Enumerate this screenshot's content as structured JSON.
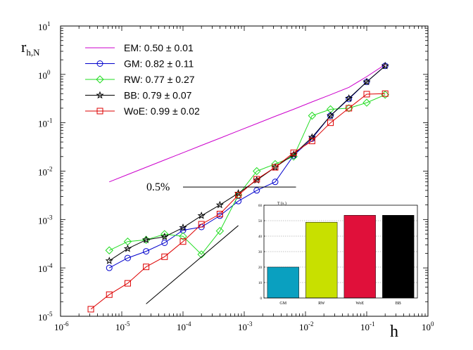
{
  "chart_data": [
    {
      "type": "line",
      "xscale": "log",
      "yscale": "log",
      "xlim_exp": [
        -6,
        0
      ],
      "ylim_exp": [
        -5,
        1
      ],
      "x_ticks": [
        {
          "base": "10",
          "exp": "-6"
        },
        {
          "base": "10",
          "exp": "-5"
        },
        {
          "base": "10",
          "exp": "-4"
        },
        {
          "base": "10",
          "exp": "-3"
        },
        {
          "base": "10",
          "exp": "-2"
        },
        {
          "base": "10",
          "exp": "-1"
        },
        {
          "base": "10",
          "exp": "0"
        }
      ],
      "y_ticks": [
        {
          "base": "10",
          "exp": "-5"
        },
        {
          "base": "10",
          "exp": "-4"
        },
        {
          "base": "10",
          "exp": "-3"
        },
        {
          "base": "10",
          "exp": "-2"
        },
        {
          "base": "10",
          "exp": "-1"
        },
        {
          "base": "10",
          "exp": "0"
        },
        {
          "base": "10",
          "exp": "1"
        }
      ],
      "xlabel": "h",
      "ylabel": {
        "main": "r",
        "sub": "h,N"
      },
      "legend_position": "top-left",
      "series": [
        {
          "name": "EM",
          "legend": "EM: 0.50 ± 0.01",
          "color": "#cc00cc",
          "marker": "none",
          "x": [
            6.25e-06,
            1.25e-05,
            2.5e-05,
            5e-05,
            0.0001,
            0.0002,
            0.0004,
            0.0008,
            0.0016,
            0.0032,
            0.0064,
            0.0128,
            0.0256,
            0.0512,
            0.1,
            0.2
          ],
          "y": [
            0.006,
            0.0085,
            0.012,
            0.017,
            0.024,
            0.034,
            0.048,
            0.068,
            0.096,
            0.136,
            0.19,
            0.27,
            0.38,
            0.54,
            0.9,
            1.6
          ]
        },
        {
          "name": "GM",
          "legend": "GM: 0.82 ± 0.11",
          "color": "#0000cc",
          "marker": "circle",
          "x": [
            6.25e-06,
            1.25e-05,
            2.5e-05,
            5e-05,
            0.0001,
            0.0002,
            0.0004,
            0.0008,
            0.0016,
            0.0032,
            0.0064,
            0.0128,
            0.0256,
            0.0512,
            0.1,
            0.2
          ],
          "y": [
            0.0001,
            0.00016,
            0.00022,
            0.00033,
            0.0006,
            0.0007,
            0.0012,
            0.0024,
            0.004,
            0.006,
            0.021,
            0.047,
            0.14,
            0.31,
            0.7,
            1.5
          ]
        },
        {
          "name": "RW",
          "legend": "RW: 0.77 ± 0.27",
          "color": "#22dd22",
          "marker": "diamond",
          "x": [
            6.25e-06,
            1.25e-05,
            2.5e-05,
            5e-05,
            0.0001,
            0.0002,
            0.0004,
            0.0008,
            0.0016,
            0.0032,
            0.0064,
            0.0128,
            0.0256,
            0.0512,
            0.1,
            0.2
          ],
          "y": [
            0.00023,
            0.00035,
            0.00038,
            0.0005,
            0.00045,
            0.00019,
            0.00058,
            0.0032,
            0.01,
            0.014,
            0.02,
            0.14,
            0.19,
            0.2,
            0.26,
            0.38
          ]
        },
        {
          "name": "BB",
          "legend": "BB: 0.79 ± 0.07",
          "color": "#000000",
          "marker": "star",
          "x": [
            6.25e-06,
            1.25e-05,
            2.5e-05,
            5e-05,
            0.0001,
            0.0002,
            0.0004,
            0.0008,
            0.0016,
            0.0032,
            0.0064,
            0.0128,
            0.0256,
            0.0512,
            0.1,
            0.2
          ],
          "y": [
            0.00014,
            0.00025,
            0.00038,
            0.00044,
            0.00068,
            0.0012,
            0.002,
            0.0035,
            0.0065,
            0.012,
            0.022,
            0.05,
            0.14,
            0.32,
            0.7,
            1.5
          ]
        },
        {
          "name": "WoE",
          "legend": "WoE: 0.99 ± 0.02",
          "color": "#dd0000",
          "marker": "square",
          "x": [
            3.125e-06,
            6.25e-06,
            1.25e-05,
            2.5e-05,
            5e-05,
            0.0001,
            0.0002,
            0.0004,
            0.0008,
            0.0016,
            0.0032,
            0.0064,
            0.0128,
            0.0256,
            0.0512,
            0.1,
            0.2
          ],
          "y": [
            1.4e-05,
            2.8e-05,
            4.8e-05,
            0.000105,
            0.00017,
            0.00035,
            0.0008,
            0.0013,
            0.0032,
            0.0068,
            0.012,
            0.024,
            0.042,
            0.1,
            0.2,
            0.39,
            0.4
          ]
        }
      ],
      "annotations": [
        {
          "text": "0.5%",
          "type": "hline",
          "y": 0.0047,
          "x_from": 0.0001,
          "x_to": 0.007
        },
        {
          "text": "",
          "type": "slope-guide",
          "x": [
            2.5e-05,
            0.0008
          ],
          "y": [
            1.8e-05,
            0.00075
          ]
        }
      ]
    },
    {
      "type": "bar",
      "title": "T (s.)",
      "categories": [
        "GM",
        "RW",
        "WoE",
        "BB"
      ],
      "values": [
        20,
        49,
        53.5,
        53.5
      ],
      "colors": [
        "#0aa0c0",
        "#c8e000",
        "#e0103a",
        "#000000"
      ],
      "ylim": [
        0,
        60
      ],
      "y_ticks": [
        "0",
        "10",
        "20",
        "30",
        "40",
        "50",
        "60"
      ],
      "grid": true
    }
  ]
}
